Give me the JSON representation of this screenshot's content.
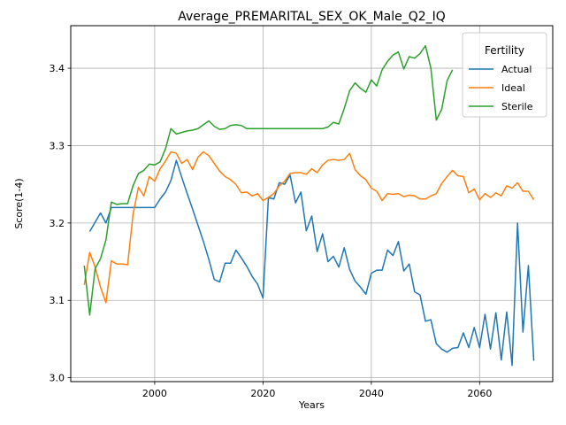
{
  "chart_data": {
    "type": "line",
    "title": "Average_PREMARITAL_SEX_OK_Male_Q2_IQ",
    "xlabel": "Years",
    "ylabel": "Score(1-4)",
    "xlim": [
      1984.5,
      2073.5
    ],
    "ylim": [
      2.995,
      3.455
    ],
    "xticks": [
      2000,
      2020,
      2040,
      2060
    ],
    "yticks": [
      3.0,
      3.1,
      3.2,
      3.3,
      3.4
    ],
    "grid": true,
    "legend": {
      "title": "Fertility",
      "placement": "top-right"
    },
    "series": [
      {
        "name": "Actual",
        "color": "#1f77b4",
        "x": [
          1988,
          1989,
          1990,
          1991,
          1992,
          1993,
          1994,
          1995,
          1996,
          1997,
          1998,
          1999,
          2000,
          2001,
          2002,
          2003,
          2004,
          2005,
          2006,
          2007,
          2008,
          2009,
          2010,
          2011,
          2012,
          2013,
          2014,
          2015,
          2016,
          2017,
          2018,
          2019,
          2020,
          2021,
          2022,
          2023,
          2024,
          2025,
          2026,
          2027,
          2028,
          2029,
          2030,
          2031,
          2032,
          2033,
          2034,
          2035,
          2036,
          2037,
          2038,
          2039,
          2040,
          2041,
          2042,
          2043,
          2044,
          2045,
          2046,
          2047,
          2048,
          2049,
          2050,
          2051,
          2052,
          2053,
          2054,
          2055,
          2056,
          2057,
          2058,
          2059,
          2060,
          2061,
          2062,
          2063,
          2064,
          2065,
          2066,
          2067,
          2068,
          2069,
          2070
        ],
        "values": [
          3.189,
          3.201,
          3.213,
          3.2,
          3.22,
          3.22,
          3.22,
          3.22,
          3.22,
          3.22,
          3.22,
          3.22,
          3.22,
          3.231,
          3.24,
          3.255,
          3.281,
          3.259,
          3.238,
          3.218,
          3.197,
          3.176,
          3.153,
          3.127,
          3.124,
          3.148,
          3.148,
          3.165,
          3.155,
          3.144,
          3.131,
          3.121,
          3.103,
          3.233,
          3.231,
          3.252,
          3.25,
          3.262,
          3.226,
          3.24,
          3.19,
          3.209,
          3.163,
          3.186,
          3.15,
          3.157,
          3.143,
          3.168,
          3.14,
          3.125,
          3.117,
          3.108,
          3.135,
          3.139,
          3.139,
          3.165,
          3.158,
          3.176,
          3.138,
          3.147,
          3.111,
          3.107,
          3.073,
          3.075,
          3.044,
          3.037,
          3.033,
          3.038,
          3.039,
          3.058,
          3.039,
          3.065,
          3.039,
          3.082,
          3.037,
          3.084,
          3.023,
          3.085,
          3.016,
          3.2,
          3.059,
          3.145,
          3.022
        ]
      },
      {
        "name": "Ideal",
        "color": "#ff7f0e",
        "x": [
          1987,
          1988,
          1989,
          1990,
          1991,
          1992,
          1993,
          1994,
          1995,
          1996,
          1997,
          1998,
          1999,
          2000,
          2001,
          2002,
          2003,
          2004,
          2005,
          2006,
          2007,
          2008,
          2009,
          2010,
          2011,
          2012,
          2013,
          2014,
          2015,
          2016,
          2017,
          2018,
          2019,
          2020,
          2021,
          2022,
          2023,
          2024,
          2025,
          2026,
          2027,
          2028,
          2029,
          2030,
          2031,
          2032,
          2033,
          2034,
          2035,
          2036,
          2037,
          2038,
          2039,
          2040,
          2041,
          2042,
          2043,
          2044,
          2045,
          2046,
          2047,
          2048,
          2049,
          2050,
          2051,
          2052,
          2053,
          2054,
          2055,
          2056,
          2057,
          2058,
          2059,
          2060,
          2061,
          2062,
          2063,
          2064,
          2065,
          2066,
          2067,
          2068,
          2069,
          2070
        ],
        "values": [
          3.12,
          3.162,
          3.143,
          3.117,
          3.097,
          3.151,
          3.147,
          3.147,
          3.146,
          3.211,
          3.246,
          3.235,
          3.26,
          3.254,
          3.27,
          3.28,
          3.292,
          3.29,
          3.277,
          3.282,
          3.269,
          3.285,
          3.292,
          3.287,
          3.277,
          3.267,
          3.26,
          3.256,
          3.25,
          3.239,
          3.24,
          3.235,
          3.238,
          3.229,
          3.233,
          3.238,
          3.248,
          3.254,
          3.264,
          3.265,
          3.265,
          3.263,
          3.27,
          3.265,
          3.275,
          3.281,
          3.282,
          3.281,
          3.282,
          3.29,
          3.269,
          3.261,
          3.256,
          3.245,
          3.241,
          3.229,
          3.238,
          3.237,
          3.238,
          3.234,
          3.236,
          3.235,
          3.231,
          3.231,
          3.235,
          3.238,
          3.251,
          3.26,
          3.268,
          3.261,
          3.26,
          3.239,
          3.244,
          3.23,
          3.238,
          3.233,
          3.239,
          3.235,
          3.248,
          3.245,
          3.252,
          3.241,
          3.241,
          3.23
        ]
      },
      {
        "name": "Sterile",
        "color": "#2ca02c",
        "x": [
          1987,
          1988,
          1989,
          1990,
          1991,
          1992,
          1993,
          1994,
          1995,
          1996,
          1997,
          1998,
          1999,
          2000,
          2001,
          2002,
          2003,
          2004,
          2005,
          2006,
          2007,
          2008,
          2009,
          2010,
          2011,
          2012,
          2013,
          2014,
          2015,
          2016,
          2017,
          2018,
          2019,
          2020,
          2021,
          2022,
          2023,
          2024,
          2025,
          2026,
          2027,
          2028,
          2029,
          2030,
          2031,
          2032,
          2033,
          2034,
          2035,
          2036,
          2037,
          2038,
          2039,
          2040,
          2041,
          2042,
          2043,
          2044,
          2045,
          2046,
          2047,
          2048,
          2049,
          2050,
          2051,
          2052,
          2053,
          2054,
          2055
        ],
        "values": [
          3.145,
          3.081,
          3.141,
          3.154,
          3.178,
          3.227,
          3.224,
          3.225,
          3.225,
          3.248,
          3.264,
          3.268,
          3.276,
          3.275,
          3.279,
          3.296,
          3.322,
          3.315,
          3.317,
          3.319,
          3.32,
          3.322,
          3.327,
          3.332,
          3.325,
          3.321,
          3.322,
          3.326,
          3.327,
          3.326,
          3.322,
          3.322,
          3.322,
          3.322,
          3.322,
          3.322,
          3.322,
          3.322,
          3.322,
          3.322,
          3.322,
          3.322,
          3.322,
          3.322,
          3.322,
          3.324,
          3.33,
          3.328,
          3.348,
          3.371,
          3.381,
          3.374,
          3.369,
          3.385,
          3.377,
          3.398,
          3.409,
          3.417,
          3.421,
          3.399,
          3.415,
          3.413,
          3.419,
          3.429,
          3.4,
          3.333,
          3.347,
          3.384,
          3.398
        ]
      }
    ]
  }
}
